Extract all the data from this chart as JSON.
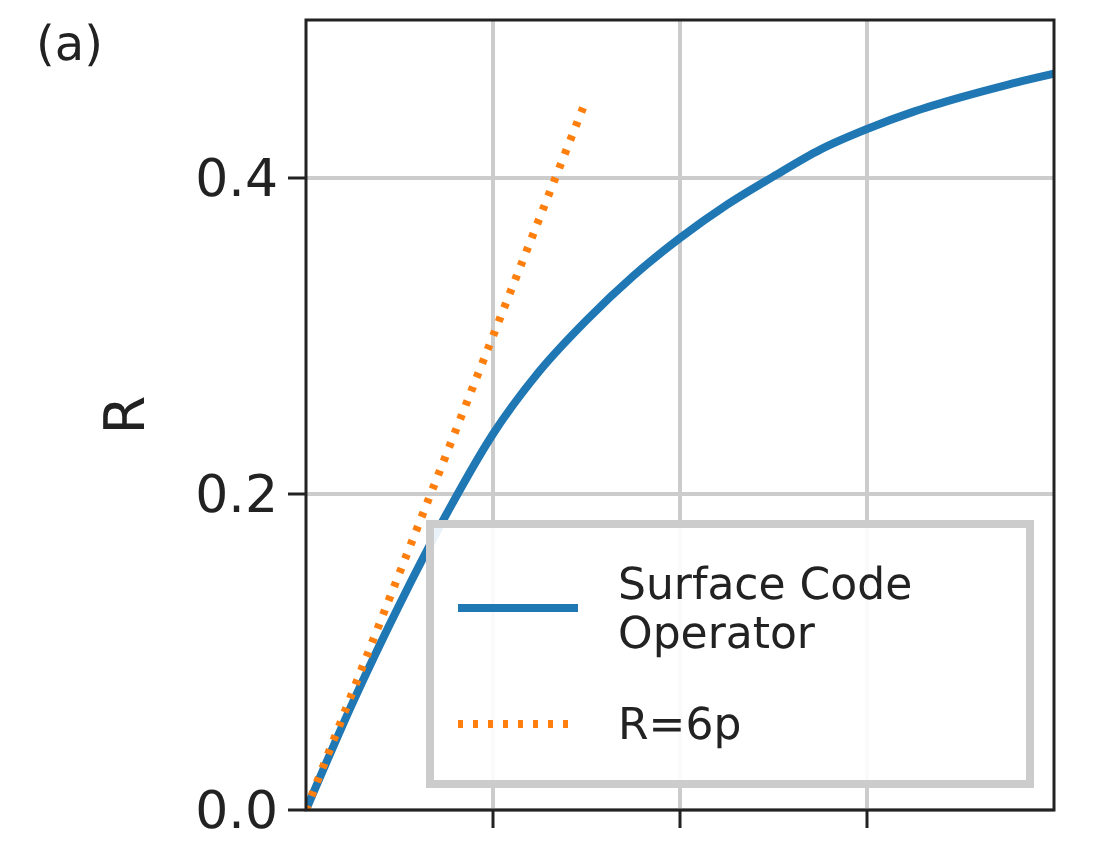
{
  "chart_data": {
    "type": "line",
    "ylabel": "R",
    "annotations": [
      "(a)"
    ],
    "categories": [
      null,
      null,
      null,
      null,
      null,
      null,
      null,
      null,
      null,
      null,
      null,
      null,
      null,
      null,
      null,
      null,
      null
    ],
    "series": [
      {
        "name": "Surface Code Operator",
        "color": "#1f77b4",
        "line_style": "solid",
        "values": [
          0,
          0.068,
          0.13,
          0.187,
          0.238,
          0.278,
          0.31,
          0.338,
          0.362,
          0.383,
          0.401,
          0.418,
          0.431,
          0.442,
          0.451,
          0.459,
          0.466
        ]
      },
      {
        "name": "R=6p",
        "color": "#ff7f0e",
        "line_style": "dotted",
        "values": [
          0,
          0.075,
          0.15,
          0.225,
          0.3,
          0.375,
          0.45,
          null,
          null,
          null,
          null,
          null,
          null,
          null,
          null,
          null,
          null
        ]
      }
    ],
    "ylim": [
      0,
      0.5
    ],
    "yticks": [
      {
        "value": 0,
        "label": "0.0"
      },
      {
        "value": 0.2,
        "label": "0.2"
      },
      {
        "value": 0.4,
        "label": "0.4"
      }
    ],
    "grid": true,
    "legend": "bottom right",
    "marker": "none"
  }
}
